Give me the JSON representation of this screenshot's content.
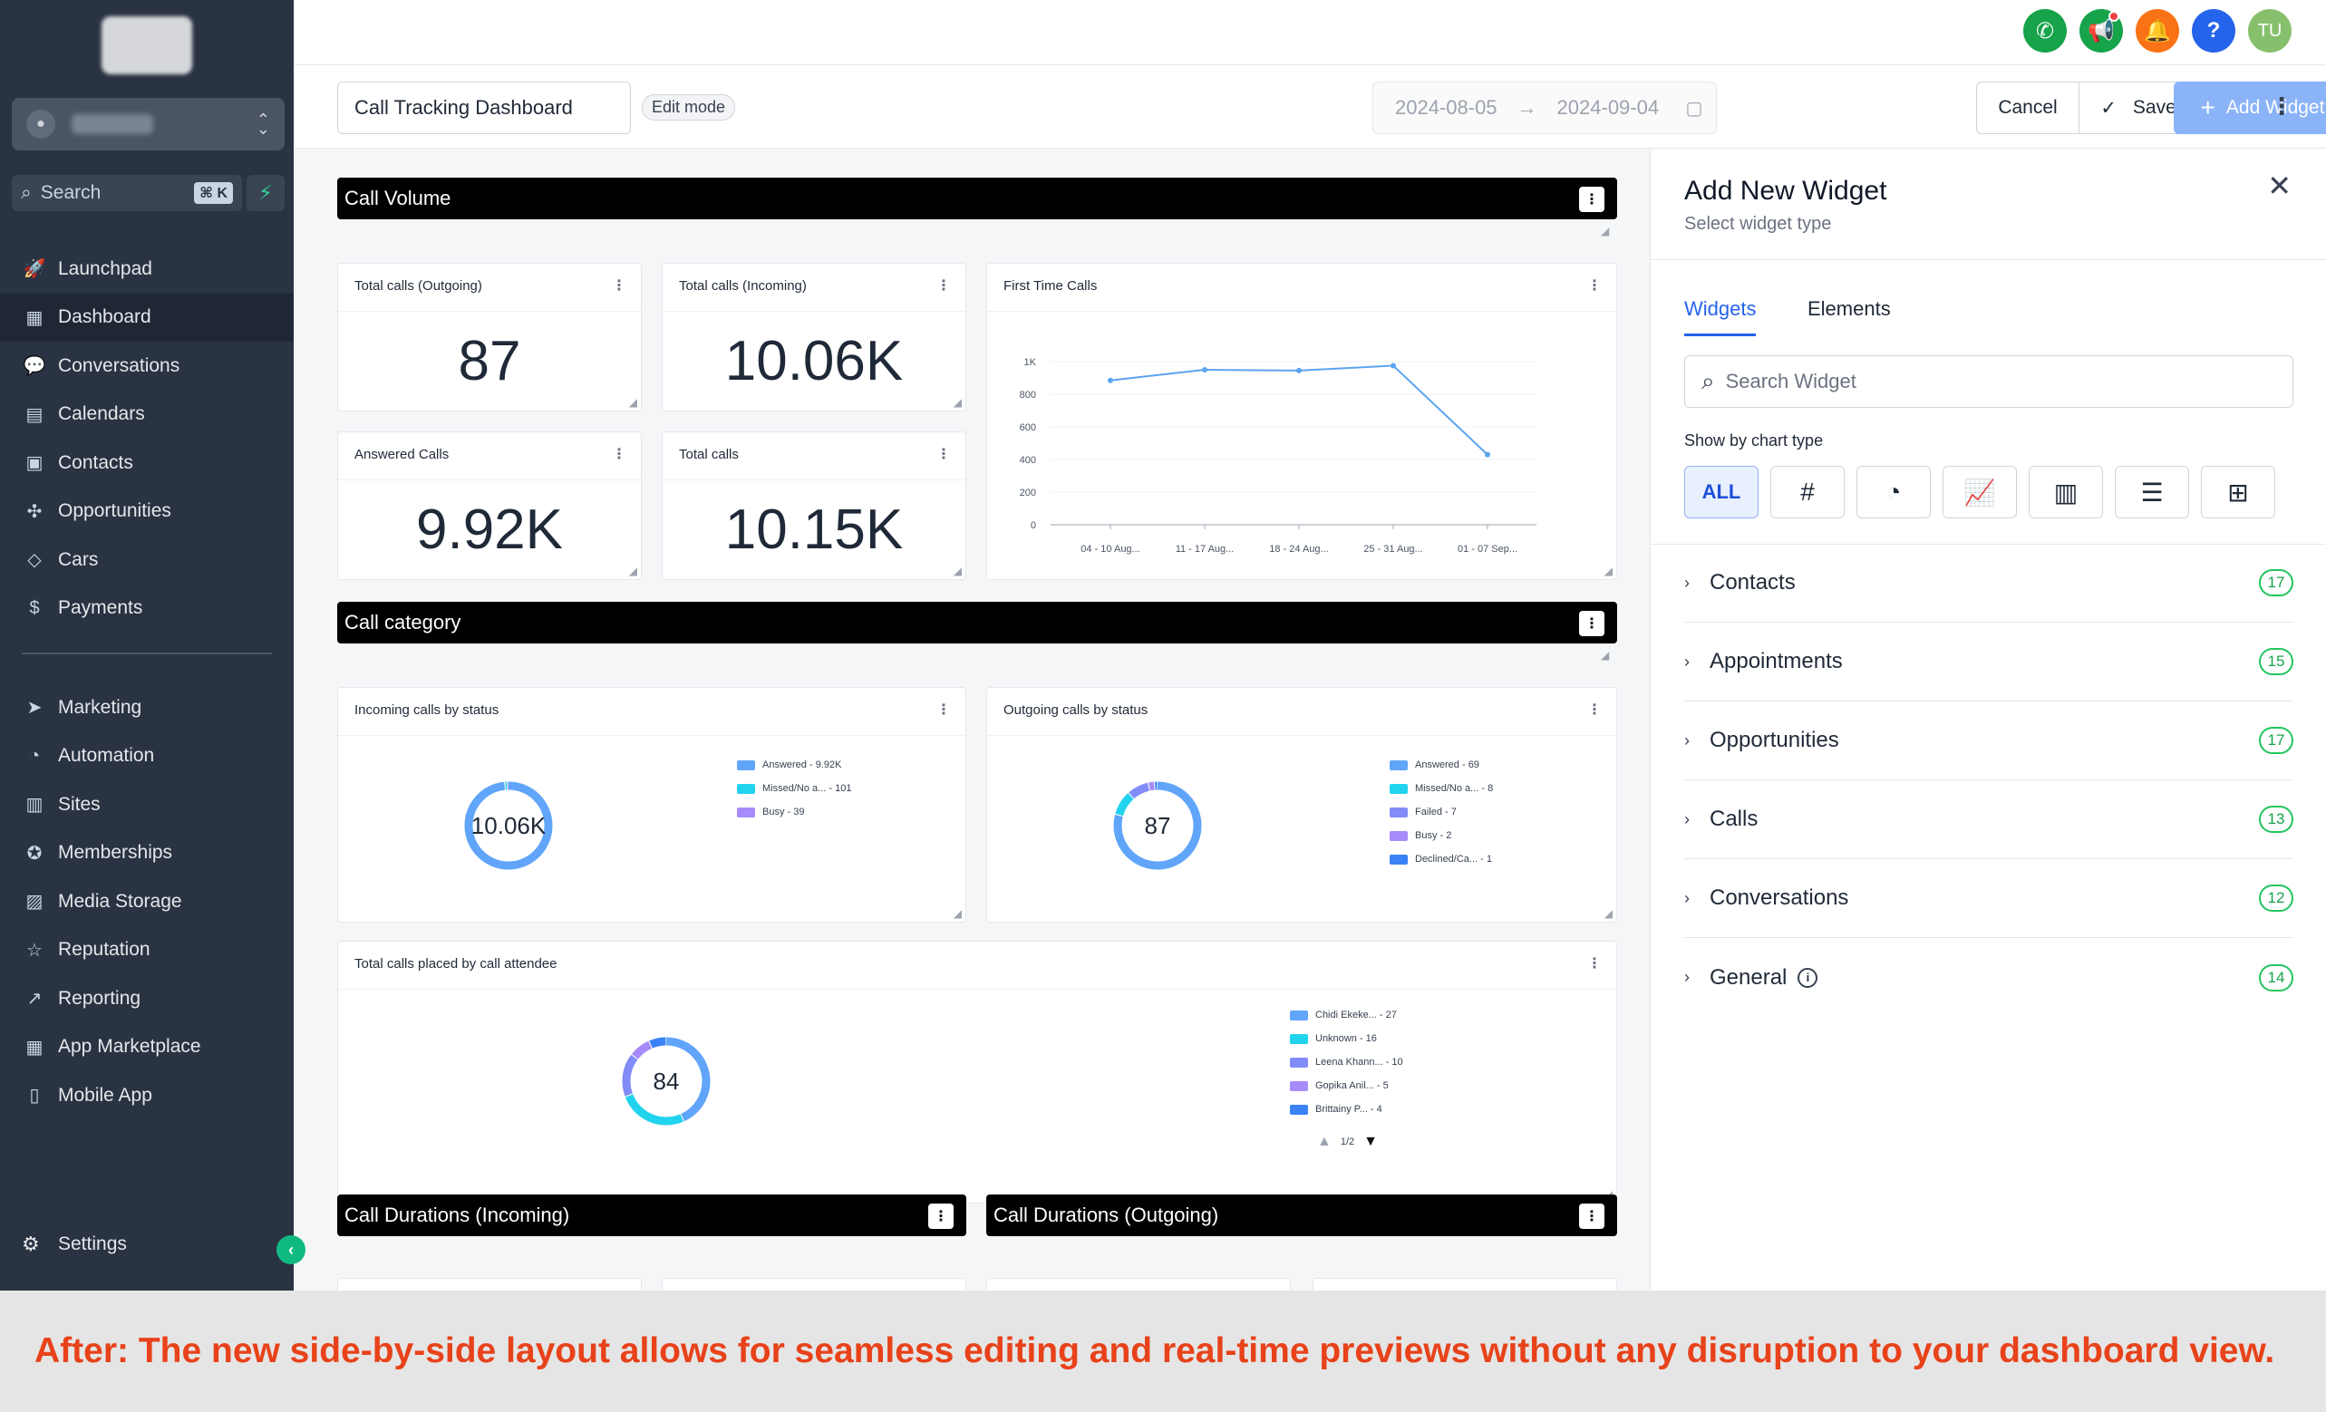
{
  "sidebar": {
    "search_placeholder": "Search",
    "search_shortcut": "⌘ K",
    "items": [
      {
        "label": "Launchpad",
        "icon": "launchpad-icon"
      },
      {
        "label": "Dashboard",
        "icon": "dashboard-icon",
        "active": true
      },
      {
        "label": "Conversations",
        "icon": "chat-icon"
      },
      {
        "label": "Calendars",
        "icon": "calendar-icon"
      },
      {
        "label": "Contacts",
        "icon": "contacts-icon"
      },
      {
        "label": "Opportunities",
        "icon": "opportunities-icon"
      },
      {
        "label": "Cars",
        "icon": "cube-icon"
      },
      {
        "label": "Payments",
        "icon": "payments-icon"
      }
    ],
    "items2": [
      {
        "label": "Marketing",
        "icon": "marketing-icon"
      },
      {
        "label": "Automation",
        "icon": "automation-icon"
      },
      {
        "label": "Sites",
        "icon": "sites-icon"
      },
      {
        "label": "Memberships",
        "icon": "memberships-icon"
      },
      {
        "label": "Media Storage",
        "icon": "media-icon"
      },
      {
        "label": "Reputation",
        "icon": "star-icon"
      },
      {
        "label": "Reporting",
        "icon": "reporting-icon"
      },
      {
        "label": "App Marketplace",
        "icon": "apps-icon"
      },
      {
        "label": "Mobile App",
        "icon": "mobile-icon"
      }
    ],
    "settings_label": "Settings"
  },
  "topbar": {
    "avatar_initials": "TU",
    "colors": {
      "phone": "#16a34a",
      "announce": "#16a34a",
      "bell": "#f97316",
      "help": "#2563eb",
      "avatar": "#86c06c"
    }
  },
  "toolbar": {
    "dashboard_name": "Call Tracking Dashboard",
    "edit_mode": "Edit mode",
    "date_start": "2024-08-05",
    "date_end": "2024-09-04",
    "cancel": "Cancel",
    "save": "Save Changes",
    "add_widget": "Add Widget"
  },
  "sections": {
    "call_volume": "Call Volume",
    "call_category": "Call category",
    "durations_incoming": "Call Durations (Incoming)",
    "durations_outgoing": "Call Durations (Outgoing)"
  },
  "stats": {
    "outgoing": {
      "title": "Total calls (Outgoing)",
      "value": "87"
    },
    "incoming": {
      "title": "Total calls (Incoming)",
      "value": "10.06K"
    },
    "answered": {
      "title": "Answered Calls",
      "value": "9.92K"
    },
    "total": {
      "title": "Total calls",
      "value": "10.15K"
    }
  },
  "chart_data": [
    {
      "type": "line",
      "title": "First Time Calls",
      "categories": [
        "04 - 10 Aug...",
        "11 - 17 Aug...",
        "18 - 24 Aug...",
        "25 - 31 Aug...",
        "01 - 07 Sep..."
      ],
      "x_points": [
        0,
        1,
        2,
        3,
        4
      ],
      "values": [
        885,
        950,
        945,
        975,
        430
      ],
      "yticks": [
        "0",
        "200",
        "400",
        "600",
        "800",
        "1K"
      ],
      "ylim": [
        0,
        1000
      ],
      "color": "#5ba4f0"
    },
    {
      "type": "pie",
      "title": "Incoming calls by status",
      "center_label": "10.06K",
      "slices": [
        {
          "label": "Answered - 9.92K",
          "value": 9920,
          "color": "#60a5fa"
        },
        {
          "label": "Missed/No a... - 101",
          "value": 101,
          "color": "#22d3ee"
        },
        {
          "label": "Busy - 39",
          "value": 39,
          "color": "#a78bfa"
        }
      ]
    },
    {
      "type": "pie",
      "title": "Outgoing calls by status",
      "center_label": "87",
      "slices": [
        {
          "label": "Answered - 69",
          "value": 69,
          "color": "#60a5fa"
        },
        {
          "label": "Missed/No a... - 8",
          "value": 8,
          "color": "#22d3ee"
        },
        {
          "label": "Failed - 7",
          "value": 7,
          "color": "#818cf8"
        },
        {
          "label": "Busy - 2",
          "value": 2,
          "color": "#a78bfa"
        },
        {
          "label": "Declined/Ca... - 1",
          "value": 1,
          "color": "#3b82f6"
        }
      ]
    },
    {
      "type": "pie",
      "title": "Total calls placed by call attendee",
      "center_label": "84",
      "pager": "1/2",
      "slices": [
        {
          "label": "Chidi Ekeke... - 27",
          "value": 27,
          "color": "#60a5fa"
        },
        {
          "label": "Unknown - 16",
          "value": 16,
          "color": "#22d3ee"
        },
        {
          "label": "Leena Khann... - 10",
          "value": 10,
          "color": "#818cf8"
        },
        {
          "label": "Gopika Anil... - 5",
          "value": 5,
          "color": "#a78bfa"
        },
        {
          "label": "Brittainy P... - 4",
          "value": 4,
          "color": "#3b82f6"
        }
      ]
    }
  ],
  "panel": {
    "title": "Add New Widget",
    "subtitle": "Select widget type",
    "tab_widgets": "Widgets",
    "tab_elements": "Elements",
    "search_placeholder": "Search Widget",
    "chart_type_label": "Show by chart type",
    "all_label": "ALL",
    "categories": [
      {
        "label": "Contacts",
        "count": "17"
      },
      {
        "label": "Appointments",
        "count": "15"
      },
      {
        "label": "Opportunities",
        "count": "17"
      },
      {
        "label": "Calls",
        "count": "13"
      },
      {
        "label": "Conversations",
        "count": "12"
      },
      {
        "label": "General",
        "count": "14"
      }
    ]
  },
  "caption": "After: The new side-by-side layout allows for seamless editing and real-time previews without any disruption to your dashboard view."
}
